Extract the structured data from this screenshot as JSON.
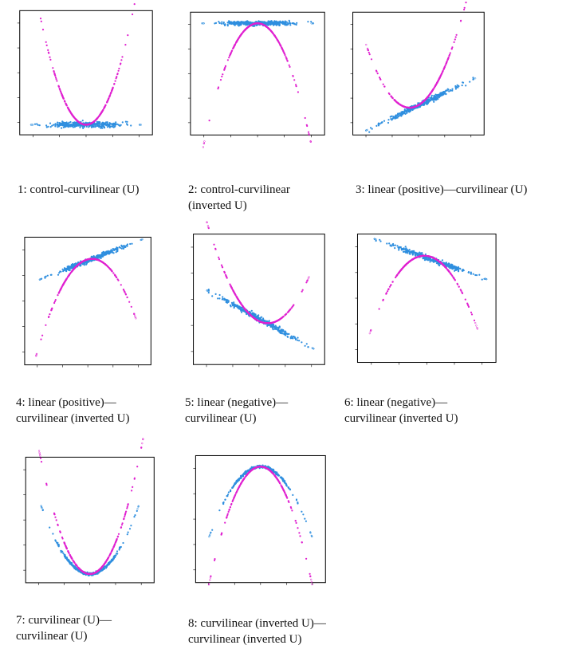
{
  "style": {
    "quadratic_color": "#e020d0",
    "linear_color": "#2f8fdf"
  },
  "charts": [
    {
      "caption": [
        "1: control-curvilinear (U)"
      ],
      "chart_data": {
        "type": "scatter",
        "xlim": [
          -3,
          3
        ],
        "ylim": [
          -0.3,
          3.4
        ],
        "series": [
          {
            "kind": "quadratic",
            "a": 0.75,
            "h": 0,
            "k": 0,
            "xrange": [
              -2.35,
              2.3
            ]
          },
          {
            "kind": "line",
            "m": 0,
            "b": 0,
            "jitter": 0.07,
            "xrange": [
              -2.4,
              2.4
            ]
          }
        ]
      }
    },
    {
      "caption": [
        "2: control-curvilinear",
        "(inverted U)"
      ],
      "chart_data": {
        "type": "scatter",
        "xlim": [
          -3,
          3
        ],
        "ylim": [
          -4.0,
          0.4
        ],
        "series": [
          {
            "kind": "quadratic",
            "a": -0.75,
            "h": 0,
            "k": 0,
            "xrange": [
              -2.35,
              2.3
            ]
          },
          {
            "kind": "line",
            "m": 0,
            "b": 0,
            "jitter": 0.07,
            "xrange": [
              -2.4,
              2.4
            ]
          }
        ]
      }
    },
    {
      "caption": [
        "3: linear (positive)—curvilinear (U)"
      ],
      "chart_data": {
        "type": "scatter",
        "xlim": [
          -3,
          3
        ],
        "ylim": [
          -0.4,
          5.0
        ],
        "series": [
          {
            "kind": "quadratic",
            "a": 0.7,
            "h": -0.4,
            "k": 0.8,
            "xrange": [
              -2.3,
              2.5
            ]
          },
          {
            "kind": "line",
            "m": 0.46,
            "b": 0.9,
            "jitter": 0.1,
            "xrange": [
              -2.3,
              2.5
            ]
          }
        ]
      }
    },
    {
      "caption": [
        "4: linear (positive)—",
        "curvilinear (inverted U)"
      ],
      "chart_data": {
        "type": "scatter",
        "xlim": [
          -3,
          3
        ],
        "ylim": [
          -4.6,
          1.9
        ],
        "series": [
          {
            "kind": "quadratic",
            "a": -0.7,
            "h": 0.2,
            "k": 0.8,
            "xrange": [
              -2.4,
              2.2
            ]
          },
          {
            "kind": "line",
            "m": 0.42,
            "b": 0.7,
            "jitter": 0.1,
            "xrange": [
              -2.2,
              2.5
            ]
          }
        ]
      }
    },
    {
      "caption": [
        "5: linear (negative)—",
        "curvilinear (U)"
      ],
      "chart_data": {
        "type": "scatter",
        "xlim": [
          -3,
          3
        ],
        "ylim": [
          -1.4,
          4.6
        ],
        "series": [
          {
            "kind": "quadratic",
            "a": 0.6,
            "h": 0.4,
            "k": 0.5,
            "xrange": [
              -2.3,
              2.2
            ]
          },
          {
            "kind": "line",
            "m": -0.55,
            "b": 0.7,
            "jitter": 0.1,
            "xrange": [
              -2.3,
              2.4
            ]
          }
        ]
      }
    },
    {
      "caption": [
        "6: linear (negative)—",
        "curvilinear (inverted U)"
      ],
      "chart_data": {
        "type": "scatter",
        "xlim": [
          -3,
          3
        ],
        "ylim": [
          -4.6,
          1.9
        ],
        "series": [
          {
            "kind": "quadratic",
            "a": -0.7,
            "h": -0.1,
            "k": 0.8,
            "xrange": [
              -2.4,
              2.1
            ]
          },
          {
            "kind": "line",
            "m": -0.42,
            "b": 0.7,
            "jitter": 0.1,
            "xrange": [
              -2.2,
              2.5
            ]
          }
        ]
      }
    },
    {
      "caption": [
        "7: curvilinear (U)—",
        "curvilinear (U)"
      ],
      "chart_data": {
        "type": "scatter",
        "xlim": [
          -3,
          3
        ],
        "ylim": [
          -0.3,
          4.0
        ],
        "series": [
          {
            "kind": "quadratic",
            "a": 0.45,
            "h": 0,
            "k": 0,
            "jitter": 0.04,
            "xrange": [
              -2.2,
              2.2
            ]
          },
          {
            "kind": "quadratic",
            "a": 0.75,
            "h": 0,
            "k": 0,
            "xrange": [
              -2.3,
              2.4
            ]
          }
        ]
      }
    },
    {
      "caption": [
        "8: curvilinear (inverted U)—",
        "curvilinear (inverted U)"
      ],
      "chart_data": {
        "type": "scatter",
        "xlim": [
          -3,
          3
        ],
        "ylim": [
          -4.2,
          0.4
        ],
        "series": [
          {
            "kind": "quadratic",
            "a": -0.45,
            "h": 0,
            "k": 0,
            "jitter": 0.04,
            "xrange": [
              -2.3,
              2.3
            ]
          },
          {
            "kind": "quadratic",
            "a": -0.75,
            "h": 0,
            "k": 0,
            "xrange": [
              -2.3,
              2.3
            ]
          }
        ]
      }
    }
  ]
}
